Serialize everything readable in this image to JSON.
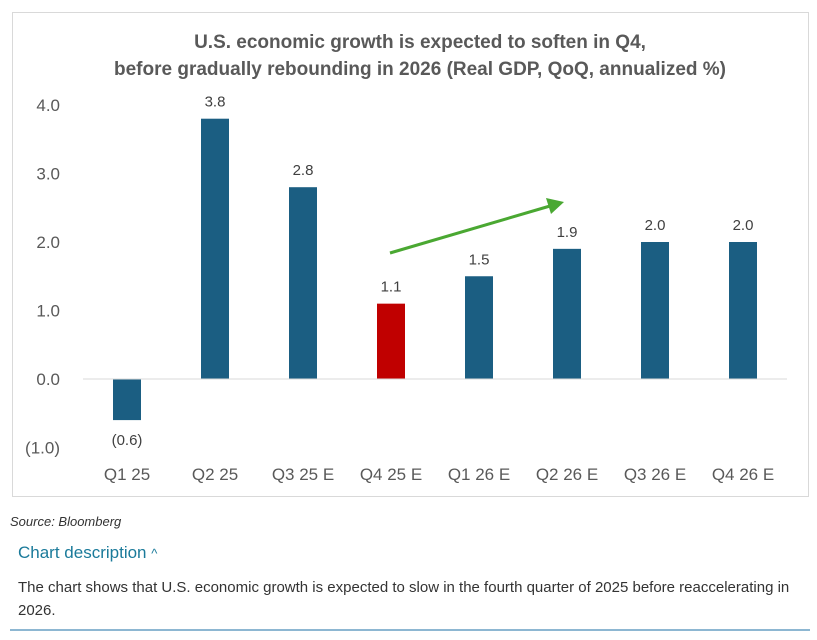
{
  "chart_data": {
    "type": "bar",
    "title": [
      "U.S. economic growth is expected to soften in Q4,",
      "before gradually rebounding in 2026 (Real GDP, QoQ, annualized %)"
    ],
    "categories": [
      "Q1 25",
      "Q2 25",
      "Q3 25 E",
      "Q4 25 E",
      "Q1 26 E",
      "Q2 26 E",
      "Q3 26 E",
      "Q4 26 E"
    ],
    "values": [
      -0.6,
      3.8,
      2.8,
      1.1,
      1.5,
      1.9,
      2.0,
      2.0
    ],
    "data_labels": [
      "(0.6)",
      "3.8",
      "2.8",
      "1.1",
      "1.5",
      "1.9",
      "2.0",
      "2.0"
    ],
    "highlight_index": 3,
    "yticks": [
      4.0,
      3.0,
      2.0,
      1.0,
      0.0,
      -1.0
    ],
    "ytick_labels": [
      "4.0",
      "3.0",
      "2.0",
      "1.0",
      "0.0",
      "(1.0)"
    ],
    "ylim": [
      -1.0,
      4.0
    ],
    "xlabel": "",
    "ylabel": "",
    "grid": false,
    "legend": "none",
    "annotation": "green upward arrow from Q4 25 E to Q2 26 E",
    "colors": {
      "bar": "#1b5e82",
      "highlight": "#c00000",
      "arrow": "#4aa832",
      "text": "#595959"
    }
  },
  "source": "Source: Bloomberg",
  "description": {
    "toggle_label": "Chart description",
    "text": "The chart shows that U.S. economic growth is expected to slow in the fourth quarter of 2025 before reaccelerating in 2026."
  }
}
